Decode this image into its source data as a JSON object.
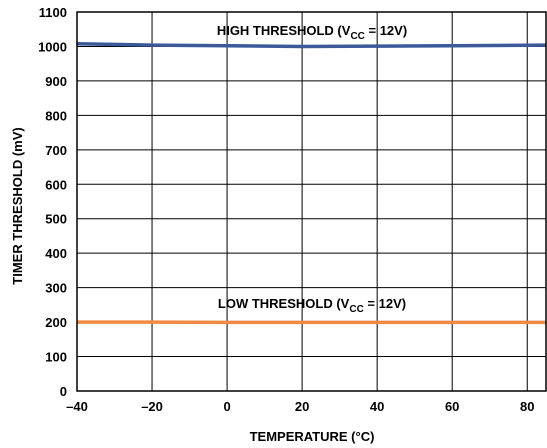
{
  "chart_data": {
    "type": "line",
    "xlabel": "TEMPERATURE (°C)",
    "ylabel": "TIMER THRESHOLD (mV)",
    "xlim": [
      -40,
      85
    ],
    "ylim": [
      0,
      1100
    ],
    "x_ticks": [
      -40,
      -20,
      0,
      20,
      40,
      60,
      80
    ],
    "x_tick_labels": [
      "–40",
      "–20",
      "0",
      "20",
      "40",
      "60",
      "80"
    ],
    "y_ticks": [
      0,
      100,
      200,
      300,
      400,
      500,
      600,
      700,
      800,
      900,
      1000,
      1100
    ],
    "y_tick_labels": [
      "0",
      "100",
      "200",
      "300",
      "400",
      "500",
      "600",
      "700",
      "800",
      "900",
      "1000",
      "1100"
    ],
    "grid": true,
    "series": [
      {
        "name": "HIGH THRESHOLD (VCC = 12V)",
        "color": "#3b5a9a",
        "x": [
          -40,
          -20,
          0,
          20,
          40,
          60,
          85
        ],
        "y": [
          1008,
          1004,
          1002,
          1000,
          1001,
          1002,
          1004
        ]
      },
      {
        "name": "LOW THRESHOLD (VCC = 12V)",
        "color": "#f08a44",
        "x": [
          -40,
          -20,
          0,
          20,
          40,
          60,
          85
        ],
        "y": [
          200,
          200,
          199,
          199,
          199,
          199,
          199
        ]
      }
    ],
    "annotations": {
      "high": {
        "prefix": "HIGH THRESHOLD (V",
        "sub": "CC",
        "suffix": " = 12V)"
      },
      "low": {
        "prefix": "LOW THRESHOLD (V",
        "sub": "CC",
        "suffix": " = 12V)"
      }
    }
  }
}
